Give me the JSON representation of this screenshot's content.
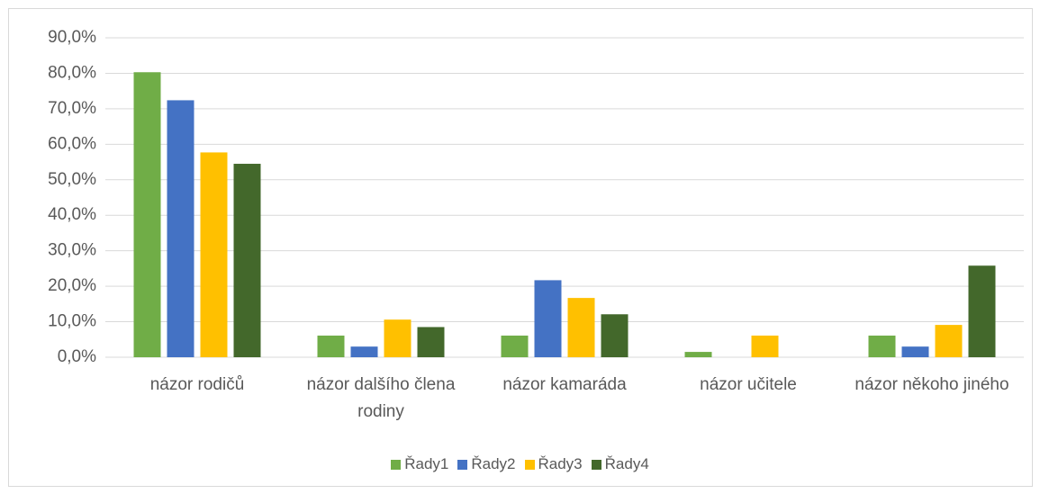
{
  "chart_data": {
    "type": "bar",
    "categories": [
      "názor rodičů",
      "názor dalšího člena rodiny",
      "názor kamaráda",
      "názor učitele",
      "názor někoho jiného"
    ],
    "series": [
      {
        "name": "Řady1",
        "color": "#70ad47",
        "values": [
          80.3,
          6.1,
          6.1,
          1.5,
          6.1
        ]
      },
      {
        "name": "Řady2",
        "color": "#4472c4",
        "values": [
          72.4,
          3.0,
          21.7,
          0,
          3.0
        ]
      },
      {
        "name": "Řady3",
        "color": "#ffc000",
        "values": [
          57.7,
          10.6,
          16.7,
          6.1,
          9.1
        ]
      },
      {
        "name": "Řady4",
        "color": "#43682b",
        "values": [
          54.5,
          8.5,
          12.1,
          0,
          25.8
        ]
      }
    ],
    "ylim": [
      0,
      90
    ],
    "yticks": [
      {
        "value": 0,
        "label": "0,0%"
      },
      {
        "value": 10,
        "label": "10,0%"
      },
      {
        "value": 20,
        "label": "20,0%"
      },
      {
        "value": 30,
        "label": "30,0%"
      },
      {
        "value": 40,
        "label": "40,0%"
      },
      {
        "value": 50,
        "label": "50,0%"
      },
      {
        "value": 60,
        "label": "60,0%"
      },
      {
        "value": 70,
        "label": "70,0%"
      },
      {
        "value": 80,
        "label": "80,0%"
      },
      {
        "value": 90,
        "label": "90,0%"
      }
    ],
    "grid": true,
    "legend": "bottom"
  }
}
